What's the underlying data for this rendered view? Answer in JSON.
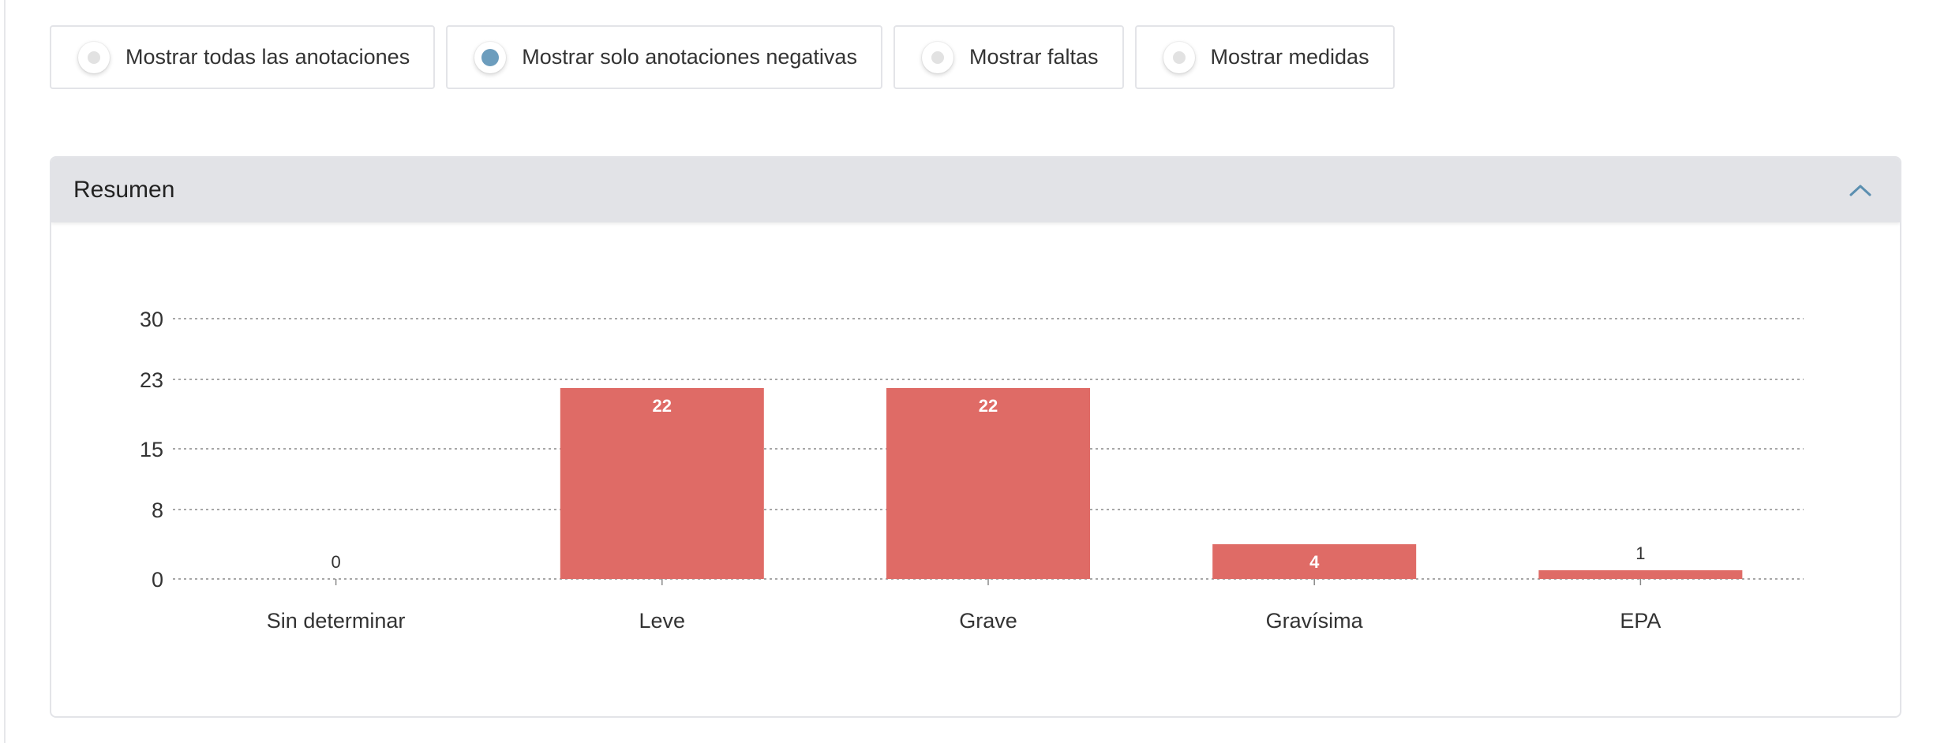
{
  "filters": [
    {
      "label": "Mostrar todas las anotaciones",
      "checked": false
    },
    {
      "label": "Mostrar solo anotaciones negativas",
      "checked": true
    },
    {
      "label": "Mostrar faltas",
      "checked": false
    },
    {
      "label": "Mostrar medidas",
      "checked": false
    }
  ],
  "summary": {
    "title": "Resumen",
    "toggle_icon": "chevron-up-icon"
  },
  "colors": {
    "bar": "#df6b66",
    "accent": "#6c9dbd"
  },
  "chart_data": {
    "type": "bar",
    "categories": [
      "Sin determinar",
      "Leve",
      "Grave",
      "Gravísima",
      "EPA"
    ],
    "values": [
      0,
      22,
      22,
      4,
      1
    ],
    "y_ticks": [
      "0",
      "8",
      "15",
      "23",
      "30"
    ],
    "ylim": [
      0,
      30
    ],
    "grid": true,
    "legend": "none"
  }
}
